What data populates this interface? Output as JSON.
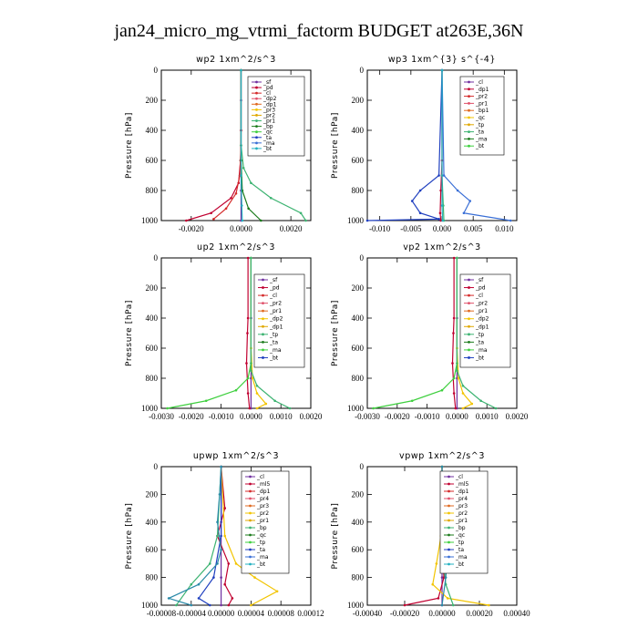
{
  "figure_title": "jan24_micro_mg_vtrmi_factorm  BUDGET at263E,36N",
  "chart_data": [
    {
      "type": "line",
      "title": "wp2   1xm^2/s^3",
      "ylabel": "Pressure [hPa]",
      "ylim": [
        1000,
        0
      ],
      "xlim": [
        -0.0032,
        0.0028
      ],
      "xticks": [
        "-0.0020",
        "0.0000",
        "0.0020"
      ],
      "xtick_values": [
        -0.002,
        0.0,
        0.002
      ],
      "yticks": [
        "0",
        "200",
        "400",
        "600",
        "800",
        "1000"
      ],
      "legend": [
        "_sf",
        "_pd",
        "_cl",
        "_dp2",
        "_dp1",
        "_pr3",
        "_pr2",
        "_pr1",
        "_bp",
        "_qc",
        "_ta",
        "_ma",
        "_bt"
      ],
      "series": [
        {
          "name": "_sf",
          "color": "#7030a0",
          "x": [
            0.0,
            0.0,
            0.0,
            0.0,
            0.0,
            0.0
          ],
          "y": [
            0,
            200,
            400,
            600,
            800,
            1000
          ]
        },
        {
          "name": "_pd",
          "color": "#c00030",
          "x": [
            0.0,
            0.0,
            -2e-05,
            -0.0001,
            -0.0004,
            -0.0012,
            -0.0022
          ],
          "y": [
            0,
            400,
            600,
            750,
            850,
            950,
            1000
          ]
        },
        {
          "name": "_cl",
          "color": "#d42a2a",
          "x": [
            0.0,
            0.0,
            -5e-05,
            -0.0002,
            -0.0006,
            -0.0011
          ],
          "y": [
            0,
            500,
            700,
            820,
            920,
            990
          ]
        },
        {
          "name": "_pr1",
          "color": "#3cb371",
          "x": [
            0.0,
            0.0,
            0.0001,
            0.0004,
            0.0012,
            0.0024,
            0.0026
          ],
          "y": [
            0,
            500,
            650,
            750,
            850,
            950,
            1000
          ]
        },
        {
          "name": "_bp",
          "color": "#1a7a1a",
          "x": [
            0.0,
            0.0,
            5e-05,
            0.0003,
            0.0008
          ],
          "y": [
            0,
            600,
            800,
            920,
            1000
          ]
        },
        {
          "name": "_bt",
          "color": "#22b0c0",
          "x": [
            0.0,
            0.0,
            3e-05,
            5e-05
          ],
          "y": [
            0,
            700,
            900,
            1000
          ]
        }
      ]
    },
    {
      "type": "line",
      "title": "wp3   1xm^{3} s^{-4}",
      "ylabel": "Pressure [hPa]",
      "ylim": [
        1000,
        0
      ],
      "xlim": [
        -0.012,
        0.012
      ],
      "xticks": [
        "-0.010",
        "-0.005",
        "0.000",
        "0.005",
        "0.010"
      ],
      "xtick_values": [
        -0.01,
        -0.005,
        0.0,
        0.005,
        0.01
      ],
      "yticks": [
        "0",
        "200",
        "400",
        "600",
        "800",
        "1000"
      ],
      "legend": [
        "_cl",
        "_dp1",
        "_pr2",
        "_pr1",
        "_bp1",
        "_qc",
        "_tp",
        "_ta",
        "_ma",
        "_bt"
      ],
      "series": [
        {
          "name": "_cl",
          "color": "#c00030",
          "x": [
            0.0,
            0.0,
            -0.0002,
            -0.0003,
            -0.0002
          ],
          "y": [
            0,
            600,
            800,
            950,
            1000
          ]
        },
        {
          "name": "_pr1",
          "color": "#3cb371",
          "x": [
            0.0,
            0.0,
            0.0002,
            0.0003
          ],
          "y": [
            0,
            700,
            900,
            1000
          ]
        },
        {
          "name": "_tp",
          "color": "#1f3fbf",
          "x": [
            0.0,
            -0.0005,
            -0.0035,
            -0.0048,
            -0.0035,
            -0.0005,
            -0.012
          ],
          "y": [
            0,
            700,
            800,
            870,
            950,
            990,
            1000
          ]
        },
        {
          "name": "_ta",
          "color": "#3a6fd6",
          "x": [
            0.0,
            0.0003,
            0.0025,
            0.0045,
            0.0035,
            0.011
          ],
          "y": [
            0,
            700,
            800,
            870,
            950,
            1000
          ]
        },
        {
          "name": "_bt",
          "color": "#22b0c0",
          "x": [
            0.0,
            0.0,
            0.0001
          ],
          "y": [
            0,
            900,
            1000
          ]
        }
      ]
    },
    {
      "type": "line",
      "title": "up2   1xm^2/s^3",
      "ylabel": "Pressure [hPa]",
      "ylim": [
        1000,
        0
      ],
      "xlim": [
        -0.003,
        0.002
      ],
      "xticks": [
        "-0.0030",
        "-0.0020",
        "-0.0010",
        "0.0000",
        "0.0010",
        "0.0020"
      ],
      "xtick_values": [
        -0.003,
        -0.002,
        -0.001,
        0.0,
        0.001,
        0.002
      ],
      "yticks": [
        "0",
        "200",
        "400",
        "600",
        "800",
        "1000"
      ],
      "legend": [
        "_sf",
        "_pd",
        "_cl",
        "_pr2",
        "_pr1",
        "_dp2",
        "_dp1",
        "_tp",
        "_ta",
        "_ma",
        "_bt"
      ],
      "series": [
        {
          "name": "_sf",
          "color": "#7030a0",
          "x": [
            0.0,
            0.0,
            0.0,
            0.0
          ],
          "y": [
            0,
            400,
            800,
            1000
          ]
        },
        {
          "name": "_pd",
          "color": "#c00030",
          "x": [
            -0.0001,
            -0.0001,
            -0.00012,
            -0.00015,
            -0.0001,
            -5e-05
          ],
          "y": [
            0,
            400,
            500,
            700,
            900,
            1000
          ]
        },
        {
          "name": "_pr2",
          "color": "#f2c400",
          "x": [
            0.0,
            0.0,
            5e-05,
            0.0002,
            0.0005,
            0.0002
          ],
          "y": [
            0,
            600,
            800,
            900,
            970,
            1000
          ]
        },
        {
          "name": "_dp1",
          "color": "#3ecf3e",
          "x": [
            0.0,
            0.0,
            -0.0001,
            -0.0005,
            -0.0015,
            -0.0028
          ],
          "y": [
            0,
            700,
            800,
            880,
            950,
            1000
          ]
        },
        {
          "name": "_pr1",
          "color": "#3cb371",
          "x": [
            0.0,
            0.0,
            0.0002,
            0.0008,
            0.0013
          ],
          "y": [
            0,
            750,
            850,
            950,
            1000
          ]
        }
      ]
    },
    {
      "type": "line",
      "title": "vp2   1xm^2/s^3",
      "ylabel": "Pressure [hPa]",
      "ylim": [
        1000,
        0
      ],
      "xlim": [
        -0.003,
        0.002
      ],
      "xticks": [
        "-0.0030",
        "-0.0020",
        "-0.0010",
        "0.0000",
        "0.0010",
        "0.0020"
      ],
      "xtick_values": [
        -0.003,
        -0.002,
        -0.001,
        0.0,
        0.001,
        0.002
      ],
      "yticks": [
        "0",
        "200",
        "400",
        "600",
        "800",
        "1000"
      ],
      "legend": [
        "_sf",
        "_pd",
        "_cl",
        "_pr2",
        "_pr1",
        "_dp2",
        "_dp1",
        "_tp",
        "_ta",
        "_ma",
        "_bt"
      ],
      "series": [
        {
          "name": "_sf",
          "color": "#7030a0",
          "x": [
            0.0,
            0.0,
            0.0,
            0.0
          ],
          "y": [
            0,
            400,
            800,
            1000
          ]
        },
        {
          "name": "_pd",
          "color": "#c00030",
          "x": [
            -0.0001,
            -0.0001,
            -0.00012,
            -0.00015,
            -0.0001,
            -5e-05
          ],
          "y": [
            0,
            400,
            500,
            700,
            900,
            1000
          ]
        },
        {
          "name": "_pr2",
          "color": "#f2c400",
          "x": [
            0.0,
            0.0,
            5e-05,
            0.0002,
            0.0005,
            0.0002
          ],
          "y": [
            0,
            600,
            800,
            900,
            970,
            1000
          ]
        },
        {
          "name": "_dp1",
          "color": "#3ecf3e",
          "x": [
            0.0,
            0.0,
            -0.0001,
            -0.0005,
            -0.0015,
            -0.0028
          ],
          "y": [
            0,
            700,
            800,
            880,
            950,
            1000
          ]
        },
        {
          "name": "_pr1",
          "color": "#3cb371",
          "x": [
            0.0,
            0.0,
            0.0002,
            0.0008,
            0.0013
          ],
          "y": [
            0,
            750,
            850,
            950,
            1000
          ]
        }
      ]
    },
    {
      "type": "line",
      "title": "upwp   1xm^2/s^3",
      "ylabel": "Pressure [hPa]",
      "ylim": [
        1000,
        0
      ],
      "xlim": [
        -8e-05,
        0.00012
      ],
      "xticks": [
        "-0.00008",
        "-0.00004",
        "0.00000",
        "0.00004",
        "0.00008",
        "0.00012"
      ],
      "xtick_values": [
        -8e-05,
        -4e-05,
        0.0,
        4e-05,
        8e-05,
        0.00012
      ],
      "yticks": [
        "0",
        "200",
        "400",
        "600",
        "800",
        "1000"
      ],
      "legend": [
        "_cl",
        "_ml5",
        "_dp1",
        "_pr4",
        "_pr3",
        "_pr2",
        "_pr1",
        "_bp",
        "_qc",
        "_tp",
        "_ta",
        "_ma",
        "_bt"
      ],
      "series": [
        {
          "name": "_cl",
          "color": "#7030a0",
          "x": [
            0.0,
            0.0,
            0.0,
            0.0
          ],
          "y": [
            0,
            400,
            800,
            1000
          ]
        },
        {
          "name": "_ml5",
          "color": "#c00030",
          "x": [
            0.0,
            5e-06,
            -5e-06,
            1e-05,
            5e-06,
            1.5e-05,
            1e-05
          ],
          "y": [
            0,
            300,
            500,
            700,
            850,
            950,
            1000
          ]
        },
        {
          "name": "_pr2",
          "color": "#f2c400",
          "x": [
            0.0,
            5e-06,
            2e-05,
            4.5e-05,
            7.5e-05,
            4e-05
          ],
          "y": [
            0,
            500,
            700,
            800,
            900,
            1000
          ]
        },
        {
          "name": "_bp",
          "color": "#3cb371",
          "x": [
            0.0,
            -5e-06,
            -1.5e-05,
            -4e-05,
            -6e-05
          ],
          "y": [
            0,
            500,
            700,
            850,
            1000
          ]
        },
        {
          "name": "_tp",
          "color": "#1f3fbf",
          "x": [
            0.0,
            0.0,
            -1e-05,
            -3e-05,
            -1.5e-05
          ],
          "y": [
            0,
            500,
            800,
            950,
            1000
          ]
        },
        {
          "name": "_ta",
          "color": "#2a8aa8",
          "x": [
            0.0,
            -2e-06,
            -5e-06,
            0.0,
            -5e-06,
            -3e-05,
            -7e-05,
            -4e-05
          ],
          "y": [
            0,
            200,
            400,
            600,
            700,
            850,
            950,
            1000
          ]
        }
      ]
    },
    {
      "type": "line",
      "title": "vpwp   1xm^2/s^3",
      "ylabel": "Pressure [hPa]",
      "ylim": [
        1000,
        0
      ],
      "xlim": [
        -0.0004,
        0.0004
      ],
      "xticks": [
        "-0.00040",
        "-0.00020",
        "0.00000",
        "0.00020",
        "0.00040"
      ],
      "xtick_values": [
        -0.0004,
        -0.0002,
        0.0,
        0.0002,
        0.0004
      ],
      "yticks": [
        "0",
        "200",
        "400",
        "600",
        "800",
        "1000"
      ],
      "legend": [
        "_cl",
        "_ml5",
        "_dp1",
        "_pr4",
        "_pr3",
        "_pr2",
        "_pr1",
        "_bp",
        "_qc",
        "_tp",
        "_ta",
        "_ma",
        "_bt"
      ],
      "series": [
        {
          "name": "_cl",
          "color": "#7030a0",
          "x": [
            0.0,
            0.0,
            0.0,
            0.0
          ],
          "y": [
            0,
            400,
            800,
            1000
          ]
        },
        {
          "name": "_ml5",
          "color": "#c00030",
          "x": [
            0.0,
            0.0,
            1e-05,
            -2e-05,
            -0.0002
          ],
          "y": [
            0,
            500,
            800,
            950,
            1000
          ]
        },
        {
          "name": "_pr2",
          "color": "#f2c400",
          "x": [
            0.0,
            -5e-06,
            -3e-05,
            -5e-05,
            3e-05,
            0.00025
          ],
          "y": [
            0,
            500,
            700,
            850,
            950,
            1000
          ]
        },
        {
          "name": "_bp",
          "color": "#3cb371",
          "x": [
            0.0,
            0.0,
            2e-05,
            6e-05
          ],
          "y": [
            0,
            600,
            850,
            1000
          ]
        },
        {
          "name": "_ta",
          "color": "#2a8aa8",
          "x": [
            0.0,
            0.0,
            2e-05,
            3e-05,
            2e-05,
            0.0
          ],
          "y": [
            0,
            200,
            400,
            600,
            800,
            1000
          ]
        }
      ]
    }
  ]
}
